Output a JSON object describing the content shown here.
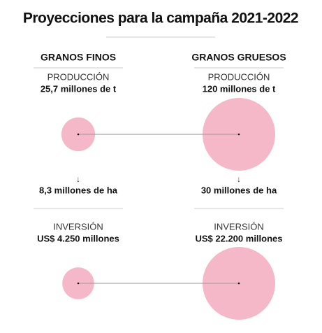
{
  "title": "Proyecciones para la campaña 2021-2022",
  "columns": [
    {
      "heading": "GRANOS FINOS",
      "production_label": "PRODUCCIÓN",
      "production": {
        "value": 25.7,
        "label": "25,7 millones de t"
      },
      "arrow": "↓",
      "area": "8,3 millones de ha",
      "investment_label": "INVERSIÓN",
      "investment": {
        "value": 4250,
        "label": "US$ 4.250 millones"
      }
    },
    {
      "heading": "GRANOS GRUESOS",
      "production_label": "PRODUCCIÓN",
      "production": {
        "value": 120,
        "label": "120 millones de t"
      },
      "arrow": "↓",
      "area": "30 millones de ha",
      "investment_label": "INVERSIÓN",
      "investment": {
        "value": 22200,
        "label": "US$ 22.200 millones"
      }
    }
  ],
  "circle_color": "#f4b8c8"
}
